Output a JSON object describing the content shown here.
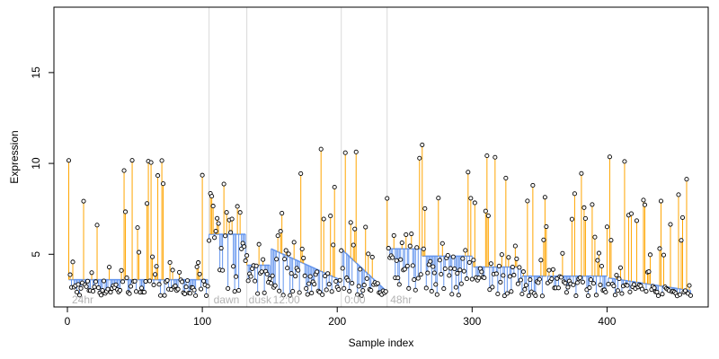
{
  "chart_data": {
    "type": "scatter",
    "title": "",
    "xlabel": "Sample index",
    "ylabel": "Expression",
    "xlim": [
      -10,
      475
    ],
    "ylim": [
      2.1,
      18.6
    ],
    "x_ticks": [
      0,
      100,
      200,
      300,
      400
    ],
    "y_ticks": [
      5,
      10,
      15
    ],
    "grid": false,
    "legend": "none",
    "colors": {
      "points": "#000000",
      "baseline": "#6495ed",
      "above_segment": "#ffa500",
      "below_segment": "#6495ed",
      "guide_lines": "#d9d9d9",
      "annotation_text": "#b3b3b3"
    },
    "guide_lines_x": [
      105,
      133,
      203,
      237
    ],
    "annotations": [
      {
        "label": "24hr",
        "x": 2
      },
      {
        "label": "dawn",
        "x": 107
      },
      {
        "label": "dusk",
        "x": 133
      },
      {
        "label": "12:00",
        "x": 151
      },
      {
        "label": "0:00",
        "x": 204
      },
      {
        "label": "48hr",
        "x": 238
      }
    ],
    "baseline": [
      {
        "x0": 1,
        "x1": 104,
        "y": 3.6
      },
      {
        "x0": 105,
        "x1": 132,
        "y": 6.1
      },
      {
        "x0": 133,
        "x1": 150,
        "y": 4.4
      },
      {
        "x0": 151,
        "x1": 202,
        "y0": 5.3,
        "y1": 3.6
      },
      {
        "x0": 203,
        "x1": 236,
        "y0": 5.3,
        "y1": 3.0
      },
      {
        "x0": 237,
        "x1": 262,
        "y": 5.3
      },
      {
        "x0": 263,
        "x1": 300,
        "y": 4.9
      },
      {
        "x0": 301,
        "x1": 336,
        "y": 4.3
      },
      {
        "x0": 337,
        "x1": 355,
        "y": 3.8
      },
      {
        "x0": 356,
        "x1": 400,
        "y": 3.8
      },
      {
        "x0": 401,
        "x1": 462,
        "y0": 3.7,
        "y1": 3.0
      }
    ],
    "seed": 7
  },
  "axes": {
    "xlabel": "Sample index",
    "ylabel": "Expression",
    "x_ticks": [
      "0",
      "100",
      "200",
      "300",
      "400"
    ],
    "y_ticks": [
      "5",
      "10",
      "15"
    ]
  }
}
